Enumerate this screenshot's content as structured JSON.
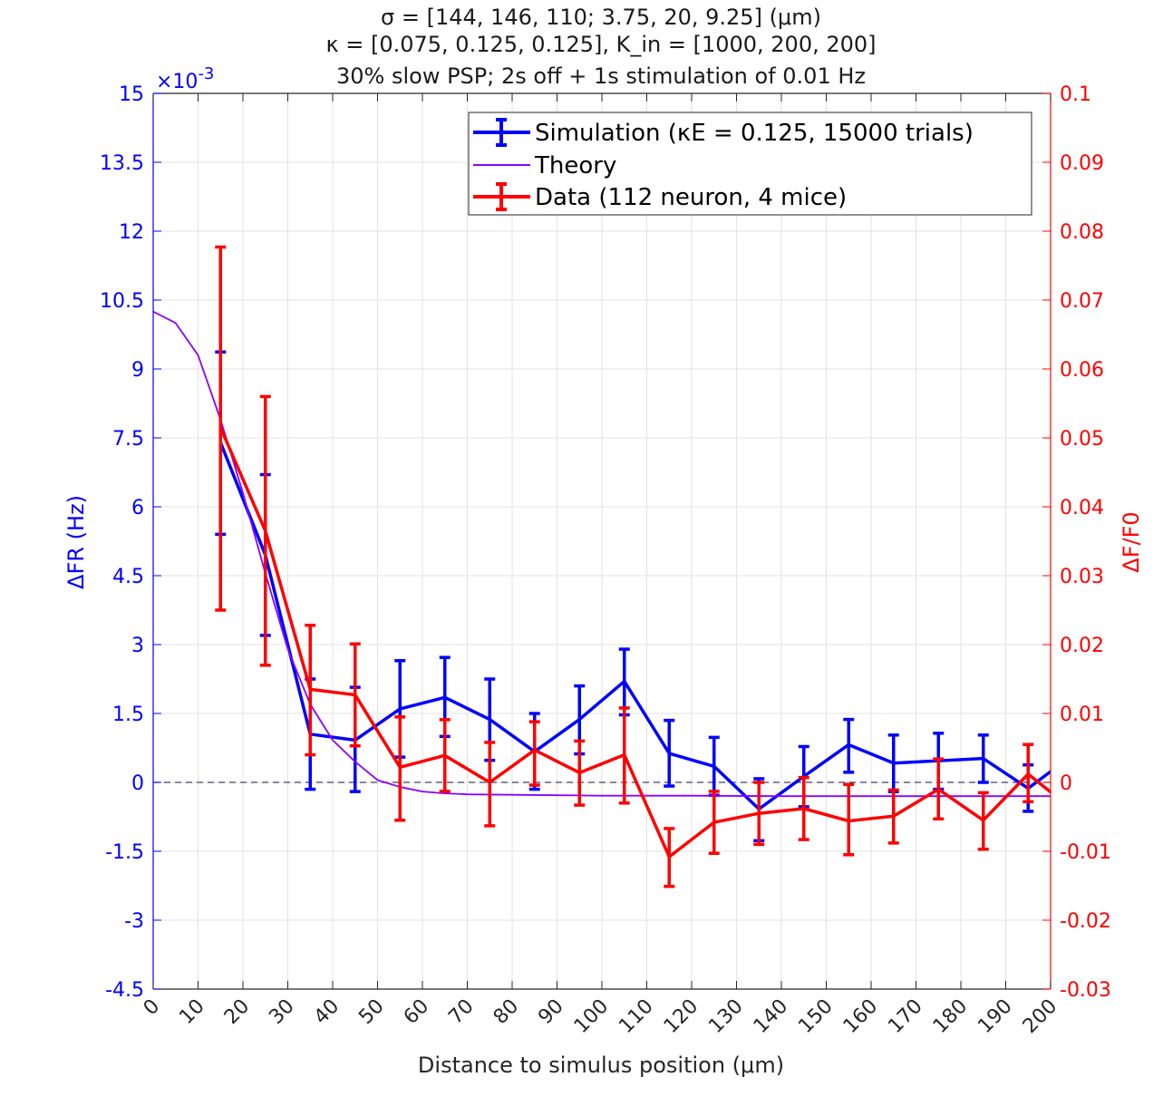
{
  "chart_data": {
    "type": "line",
    "title": [
      "σ = [144, 146, 110; 3.75, 20, 9.25] (μm)",
      "κ = [0.075, 0.125, 0.125], K_in = [1000, 200, 200]",
      "30% slow PSP; 2s off + 1s stimulation of 0.01 Hz"
    ],
    "xlabel": "Distance to simulus position (μm)",
    "ylabel_left": "ΔFR (Hz)",
    "ylabel_right": "ΔF/F0",
    "left_exponent_label": "×10",
    "left_exponent_power": "-3",
    "xlim": [
      0,
      200
    ],
    "ylim_left": [
      -4.5,
      15
    ],
    "ylim_right": [
      -0.03,
      0.1
    ],
    "x_ticks": [
      "0",
      "10",
      "20",
      "30",
      "40",
      "50",
      "60",
      "70",
      "80",
      "90",
      "100",
      "110",
      "120",
      "130",
      "140",
      "150",
      "160",
      "170",
      "180",
      "190",
      "200"
    ],
    "y_left_ticks": [
      "-4.5",
      "-3",
      "-1.5",
      "0",
      "1.5",
      "3",
      "4.5",
      "6",
      "7.5",
      "9",
      "10.5",
      "12",
      "13.5",
      "15"
    ],
    "y_right_ticks": [
      "-0.03",
      "-0.02",
      "-0.01",
      "0",
      "0.01",
      "0.02",
      "0.03",
      "0.04",
      "0.05",
      "0.06",
      "0.07",
      "0.08",
      "0.09",
      "0.1"
    ],
    "grid": true,
    "legend_position": "top-right",
    "colors": {
      "simulation": "#0000ff",
      "theory": "#8b00ff",
      "data": "#ff0000",
      "zero_line": "#404060"
    },
    "series": [
      {
        "name": "Simulation (κE = 0.125, 15000 trials)",
        "axis": "left",
        "x": [
          15,
          25,
          35,
          45,
          55,
          65,
          75,
          85,
          95,
          105,
          115,
          125,
          135,
          145,
          155,
          165,
          175,
          185,
          195,
          205
        ],
        "y": [
          7.4,
          4.95,
          1.05,
          0.92,
          1.6,
          1.85,
          1.37,
          0.67,
          1.37,
          2.2,
          0.63,
          0.35,
          -0.58,
          0.13,
          0.82,
          0.42,
          0.47,
          0.52,
          -0.13,
          0.6
        ],
        "err_low": [
          5.4,
          3.2,
          -0.15,
          -0.2,
          0.55,
          1.0,
          0.48,
          -0.15,
          0.62,
          1.47,
          -0.08,
          -0.28,
          -1.27,
          -0.53,
          0.22,
          -0.2,
          -0.15,
          0.0,
          -0.63,
          0.0
        ],
        "err_high": [
          9.37,
          6.7,
          2.25,
          2.07,
          2.65,
          2.72,
          2.25,
          1.5,
          2.1,
          2.9,
          1.35,
          0.98,
          0.08,
          0.78,
          1.37,
          1.03,
          1.07,
          1.03,
          0.38,
          1.2
        ]
      },
      {
        "name": "Theory",
        "axis": "left",
        "x": [
          0,
          5,
          10,
          15,
          20,
          25,
          30,
          35,
          40,
          45,
          50,
          55,
          60,
          65,
          70,
          80,
          90,
          100,
          120,
          140,
          160,
          180,
          200
        ],
        "y": [
          10.25,
          10.0,
          9.3,
          7.9,
          6.3,
          4.55,
          2.9,
          1.7,
          0.92,
          0.45,
          0.05,
          -0.1,
          -0.2,
          -0.24,
          -0.26,
          -0.27,
          -0.28,
          -0.29,
          -0.29,
          -0.3,
          -0.3,
          -0.3,
          -0.3
        ]
      },
      {
        "name": "Data (112 neuron, 4 mice)",
        "axis": "right",
        "x": [
          15,
          25,
          35,
          45,
          55,
          65,
          75,
          85,
          95,
          105,
          115,
          125,
          135,
          145,
          155,
          165,
          175,
          185,
          195,
          205
        ],
        "y": [
          0.0515,
          0.0365,
          0.0135,
          0.0127,
          0.0022,
          0.0039,
          0.0,
          0.0047,
          0.0014,
          0.004,
          -0.0108,
          -0.0058,
          -0.0045,
          -0.0038,
          -0.0056,
          -0.0049,
          -0.001,
          -0.0055,
          0.0012,
          -0.004
        ],
        "err_low": [
          0.025,
          0.017,
          0.004,
          0.0053,
          -0.0055,
          -0.0013,
          -0.0063,
          -0.0004,
          -0.0033,
          -0.003,
          -0.0151,
          -0.0103,
          -0.009,
          -0.0083,
          -0.0105,
          -0.0088,
          -0.0053,
          -0.0097,
          -0.0028,
          -0.01
        ],
        "err_high": [
          0.0777,
          0.056,
          0.0228,
          0.0201,
          0.0095,
          0.0091,
          0.0058,
          0.0088,
          0.006,
          0.0108,
          -0.0067,
          -0.0013,
          0.0,
          0.0007,
          -0.0003,
          -0.0011,
          0.0034,
          -0.0015,
          0.0055,
          0.002
        ]
      }
    ]
  }
}
